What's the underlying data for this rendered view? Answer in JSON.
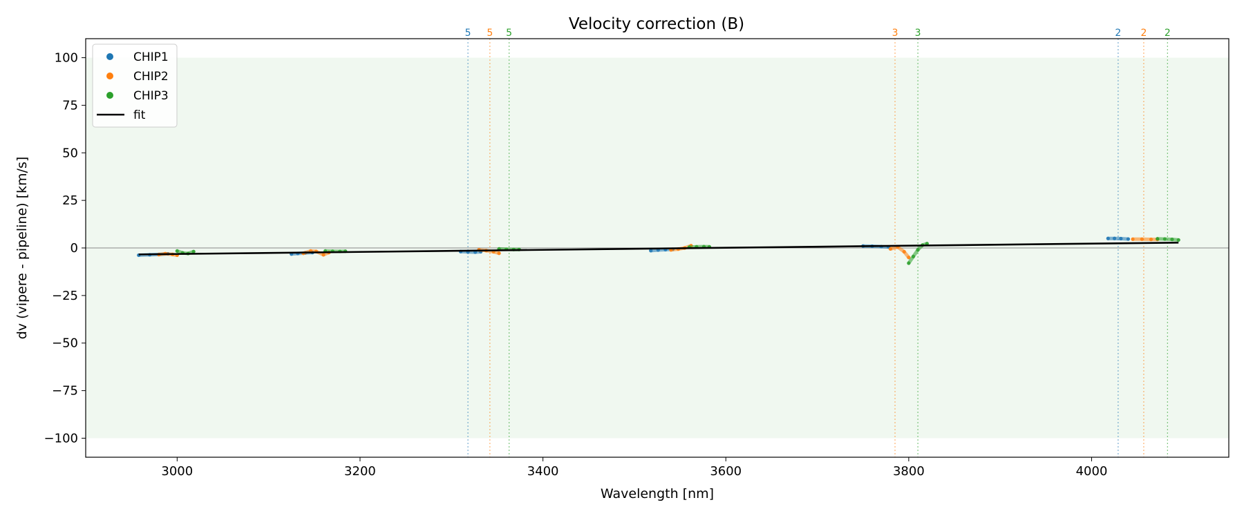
{
  "chart_data": {
    "type": "scatter",
    "title": "Velocity correction (B)",
    "xlabel": "Wavelength [nm]",
    "ylabel": "dv (vipere - pipeline) [km/s]",
    "xlim": [
      2900,
      4150
    ],
    "ylim": [
      -110,
      110
    ],
    "xticks": [
      3000,
      3200,
      3400,
      3600,
      3800,
      4000
    ],
    "yticks": [
      100,
      75,
      50,
      25,
      0,
      -25,
      -50,
      -75,
      -100
    ],
    "ytick_labels": [
      "100",
      "75",
      "50",
      "25",
      "0",
      "−25",
      "−50",
      "−75",
      "−100"
    ],
    "band": [
      -100,
      100
    ],
    "grid": false,
    "legend_position": "top-left",
    "series": [
      {
        "name": "CHIP1",
        "color": "#1f77b4",
        "segments": [
          [
            [
              2958,
              -3.8
            ],
            [
              2970,
              -3.6
            ],
            [
              2980,
              -3.4
            ],
            [
              2990,
              -3.1
            ]
          ],
          [
            [
              3125,
              -3.2
            ],
            [
              3132,
              -2.9
            ],
            [
              3140,
              -2.6
            ],
            [
              3148,
              -2.4
            ]
          ],
          [
            [
              3310,
              -1.9
            ],
            [
              3318,
              -2.1
            ],
            [
              3326,
              -2.2
            ],
            [
              3332,
              -2.0
            ]
          ],
          [
            [
              3518,
              -1.4
            ],
            [
              3526,
              -1.1
            ],
            [
              3534,
              -0.9
            ],
            [
              3542,
              -0.7
            ]
          ],
          [
            [
              3750,
              1.0
            ],
            [
              3760,
              0.9
            ],
            [
              3770,
              0.7
            ],
            [
              3778,
              0.5
            ]
          ],
          [
            [
              4018,
              5.0
            ],
            [
              4025,
              5.0
            ],
            [
              4032,
              4.9
            ],
            [
              4040,
              4.7
            ]
          ]
        ]
      },
      {
        "name": "CHIP2",
        "color": "#ff7f0e",
        "segments": [
          [
            [
              2980,
              -3.5
            ],
            [
              2987,
              -3.0
            ],
            [
              2995,
              -3.4
            ],
            [
              3000,
              -3.8
            ]
          ],
          [
            [
              3138,
              -2.8
            ],
            [
              3146,
              -1.6
            ],
            [
              3152,
              -1.8
            ],
            [
              3160,
              -3.6
            ],
            [
              3166,
              -2.4
            ]
          ],
          [
            [
              3330,
              -1.0
            ],
            [
              3338,
              -1.4
            ],
            [
              3346,
              -2.0
            ],
            [
              3352,
              -2.8
            ]
          ],
          [
            [
              3540,
              -1.0
            ],
            [
              3548,
              -0.6
            ],
            [
              3555,
              0.0
            ],
            [
              3562,
              1.2
            ]
          ],
          [
            [
              3780,
              -0.5
            ],
            [
              3788,
              0.5
            ],
            [
              3795,
              -2.0
            ],
            [
              3800,
              -5.0
            ]
          ],
          [
            [
              4045,
              4.6
            ],
            [
              4055,
              4.6
            ],
            [
              4065,
              4.5
            ],
            [
              4072,
              4.5
            ]
          ]
        ]
      },
      {
        "name": "CHIP3",
        "color": "#2ca02c",
        "segments": [
          [
            [
              3000,
              -1.6
            ],
            [
              3006,
              -2.6
            ],
            [
              3012,
              -2.9
            ],
            [
              3018,
              -1.9
            ]
          ],
          [
            [
              3162,
              -1.6
            ],
            [
              3170,
              -1.7
            ],
            [
              3178,
              -1.8
            ],
            [
              3184,
              -1.7
            ]
          ],
          [
            [
              3352,
              -0.5
            ],
            [
              3360,
              -0.7
            ],
            [
              3368,
              -0.8
            ],
            [
              3374,
              -0.8
            ]
          ],
          [
            [
              3560,
              0.4
            ],
            [
              3568,
              0.6
            ],
            [
              3576,
              0.7
            ],
            [
              3582,
              0.6
            ]
          ],
          [
            [
              3800,
              -8.0
            ],
            [
              3805,
              -4.5
            ],
            [
              3810,
              -1.0
            ],
            [
              3815,
              1.5
            ],
            [
              3820,
              2.3
            ]
          ],
          [
            [
              4072,
              4.8
            ],
            [
              4080,
              4.7
            ],
            [
              4088,
              4.5
            ],
            [
              4095,
              4.2
            ]
          ]
        ]
      }
    ],
    "fit": {
      "name": "fit",
      "color": "#000000",
      "x": [
        2958,
        4095
      ],
      "y": [
        -3.4,
        2.8
      ]
    },
    "zero_line": 0,
    "vertical_markers": [
      {
        "x": 3318,
        "label": "5",
        "color": "#1f77b4"
      },
      {
        "x": 3342,
        "label": "5",
        "color": "#ff7f0e"
      },
      {
        "x": 3363,
        "label": "5",
        "color": "#2ca02c"
      },
      {
        "x": 3785,
        "label": "3",
        "color": "#ff7f0e"
      },
      {
        "x": 3810,
        "label": "3",
        "color": "#2ca02c"
      },
      {
        "x": 4029,
        "label": "2",
        "color": "#1f77b4"
      },
      {
        "x": 4057,
        "label": "2",
        "color": "#ff7f0e"
      },
      {
        "x": 4083,
        "label": "2",
        "color": "#2ca02c"
      }
    ],
    "legend": [
      {
        "label": "CHIP1",
        "kind": "marker",
        "color": "#1f77b4"
      },
      {
        "label": "CHIP2",
        "kind": "marker",
        "color": "#ff7f0e"
      },
      {
        "label": "CHIP3",
        "kind": "marker",
        "color": "#2ca02c"
      },
      {
        "label": "fit",
        "kind": "line",
        "color": "#000000"
      }
    ]
  }
}
